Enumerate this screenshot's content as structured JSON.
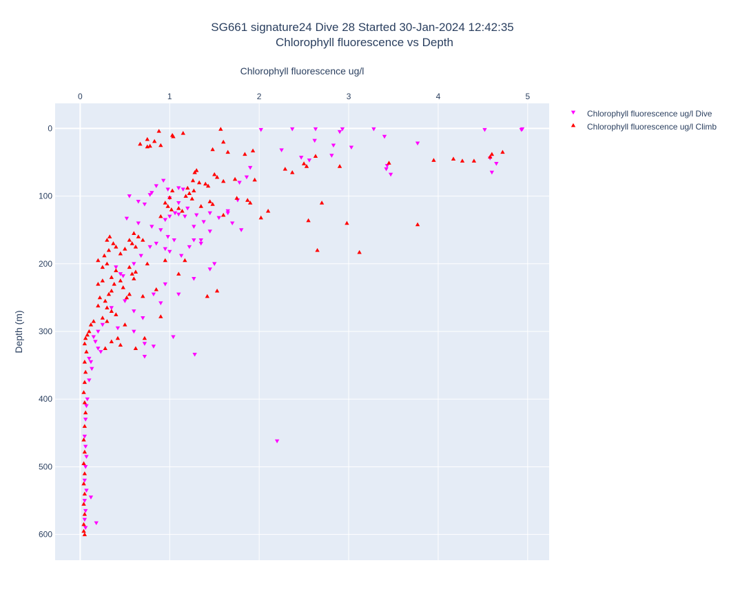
{
  "chart_data": {
    "type": "scatter",
    "title_line1": "SG661 signature24 Dive 28 Started 30-Jan-2024 12:42:35",
    "title_line2": "Chlorophyll fluorescence vs Depth",
    "xlabel": "Chlorophyll fluorescence ug/l",
    "ylabel": "Depth (m)",
    "xlim": [
      -0.28,
      5.24
    ],
    "ylim": [
      638,
      -37
    ],
    "x_ticks": [
      "0",
      "1",
      "2",
      "3",
      "4",
      "5"
    ],
    "y_ticks": [
      "0",
      "100",
      "200",
      "300",
      "400",
      "500",
      "600"
    ],
    "x_axis_side": "top",
    "y_reversed": true,
    "grid": true,
    "legend_position": "top-right",
    "series": [
      {
        "name": "Chlorophyll fluorescence ug/l Dive",
        "color": "#ff00ff",
        "marker": "triangle-down",
        "points": [
          [
            2.02,
            2
          ],
          [
            2.37,
            1
          ],
          [
            2.63,
            1
          ],
          [
            2.9,
            5
          ],
          [
            2.93,
            1
          ],
          [
            3.28,
            1
          ],
          [
            4.52,
            2
          ],
          [
            4.93,
            2
          ],
          [
            4.94,
            1
          ],
          [
            3.4,
            12
          ],
          [
            2.62,
            18
          ],
          [
            2.83,
            25
          ],
          [
            3.03,
            28
          ],
          [
            3.77,
            22
          ],
          [
            2.25,
            32
          ],
          [
            2.47,
            43
          ],
          [
            2.56,
            47
          ],
          [
            2.81,
            40
          ],
          [
            4.58,
            44
          ],
          [
            4.65,
            52
          ],
          [
            3.43,
            55
          ],
          [
            3.42,
            60
          ],
          [
            3.47,
            68
          ],
          [
            4.6,
            65
          ],
          [
            1.9,
            58
          ],
          [
            1.86,
            72
          ],
          [
            1.78,
            80
          ],
          [
            1.76,
            106
          ],
          [
            1.65,
            122
          ],
          [
            1.45,
            125
          ],
          [
            1.15,
            90
          ],
          [
            1.1,
            88
          ],
          [
            0.98,
            90
          ],
          [
            0.93,
            77
          ],
          [
            0.85,
            85
          ],
          [
            0.55,
            100
          ],
          [
            0.65,
            108
          ],
          [
            0.72,
            112
          ],
          [
            0.78,
            98
          ],
          [
            0.8,
            95
          ],
          [
            1.0,
            103
          ],
          [
            1.1,
            110
          ],
          [
            1.2,
            118
          ],
          [
            1.3,
            128
          ],
          [
            1.38,
            138
          ],
          [
            1.45,
            152
          ],
          [
            1.55,
            132
          ],
          [
            1.65,
            125
          ],
          [
            1.7,
            140
          ],
          [
            1.8,
            150
          ],
          [
            0.52,
            133
          ],
          [
            0.65,
            140
          ],
          [
            0.8,
            145
          ],
          [
            0.95,
            135
          ],
          [
            1.0,
            130
          ],
          [
            1.06,
            125
          ],
          [
            1.1,
            127
          ],
          [
            1.17,
            130
          ],
          [
            1.27,
            145
          ],
          [
            1.35,
            165
          ],
          [
            0.9,
            150
          ],
          [
            0.98,
            160
          ],
          [
            1.05,
            165
          ],
          [
            0.85,
            170
          ],
          [
            0.95,
            178
          ],
          [
            1.0,
            182
          ],
          [
            1.13,
            188
          ],
          [
            1.22,
            175
          ],
          [
            1.27,
            165
          ],
          [
            1.35,
            170
          ],
          [
            0.4,
            205
          ],
          [
            0.45,
            215
          ],
          [
            0.48,
            218
          ],
          [
            0.6,
            200
          ],
          [
            0.68,
            188
          ],
          [
            0.78,
            175
          ],
          [
            1.27,
            222
          ],
          [
            1.45,
            208
          ],
          [
            1.5,
            200
          ],
          [
            1.1,
            245
          ],
          [
            0.95,
            230
          ],
          [
            0.82,
            245
          ],
          [
            0.9,
            258
          ],
          [
            0.7,
            280
          ],
          [
            0.6,
            270
          ],
          [
            0.5,
            255
          ],
          [
            0.35,
            265
          ],
          [
            0.25,
            290
          ],
          [
            0.2,
            300
          ],
          [
            0.15,
            308
          ],
          [
            0.17,
            315
          ],
          [
            0.2,
            325
          ],
          [
            0.23,
            330
          ],
          [
            0.42,
            295
          ],
          [
            0.6,
            300
          ],
          [
            0.72,
            318
          ],
          [
            0.82,
            322
          ],
          [
            1.04,
            308
          ],
          [
            1.28,
            334
          ],
          [
            0.72,
            337
          ],
          [
            2.2,
            462
          ],
          [
            0.18,
            583
          ],
          [
            0.12,
            545
          ],
          [
            0.1,
            340
          ],
          [
            0.12,
            345
          ],
          [
            0.13,
            355
          ],
          [
            0.1,
            372
          ],
          [
            0.08,
            400
          ],
          [
            0.07,
            410
          ],
          [
            0.06,
            430
          ],
          [
            0.05,
            455
          ],
          [
            0.06,
            470
          ],
          [
            0.07,
            485
          ],
          [
            0.06,
            500
          ],
          [
            0.05,
            520
          ],
          [
            0.07,
            535
          ],
          [
            0.05,
            550
          ],
          [
            0.06,
            565
          ],
          [
            0.05,
            578
          ],
          [
            0.06,
            590
          ]
        ]
      },
      {
        "name": "Chlorophyll fluorescence ug/l Climb",
        "color": "#ff0000",
        "marker": "triangle-up",
        "points": [
          [
            1.57,
            1
          ],
          [
            0.88,
            4
          ],
          [
            1.15,
            7
          ],
          [
            1.03,
            10
          ],
          [
            1.04,
            12
          ],
          [
            0.75,
            16
          ],
          [
            0.83,
            19
          ],
          [
            0.67,
            23
          ],
          [
            0.75,
            27
          ],
          [
            0.78,
            26
          ],
          [
            0.9,
            25
          ],
          [
            1.6,
            20
          ],
          [
            1.65,
            35
          ],
          [
            1.48,
            31
          ],
          [
            1.93,
            33
          ],
          [
            1.84,
            38
          ],
          [
            2.63,
            41
          ],
          [
            2.9,
            56
          ],
          [
            2.29,
            60
          ],
          [
            2.37,
            65
          ],
          [
            2.5,
            52
          ],
          [
            2.53,
            56
          ],
          [
            3.95,
            47
          ],
          [
            4.17,
            45
          ],
          [
            4.27,
            48
          ],
          [
            4.4,
            48
          ],
          [
            4.58,
            42
          ],
          [
            4.6,
            38
          ],
          [
            4.72,
            35
          ],
          [
            3.45,
            51
          ],
          [
            1.3,
            62
          ],
          [
            1.28,
            65
          ],
          [
            1.5,
            68
          ],
          [
            1.53,
            72
          ],
          [
            1.6,
            78
          ],
          [
            1.73,
            75
          ],
          [
            1.95,
            76
          ],
          [
            1.4,
            82
          ],
          [
            1.43,
            85
          ],
          [
            1.33,
            80
          ],
          [
            1.26,
            77
          ],
          [
            1.2,
            88
          ],
          [
            1.27,
            92
          ],
          [
            1.22,
            96
          ],
          [
            1.25,
            104
          ],
          [
            1.45,
            108
          ],
          [
            1.6,
            128
          ],
          [
            1.75,
            103
          ],
          [
            1.87,
            106
          ],
          [
            1.9,
            110
          ],
          [
            1.18,
            100
          ],
          [
            1.03,
            92
          ],
          [
            1.0,
            102
          ],
          [
            0.95,
            110
          ],
          [
            0.98,
            115
          ],
          [
            1.02,
            120
          ],
          [
            0.9,
            130
          ],
          [
            1.1,
            118
          ],
          [
            1.14,
            122
          ],
          [
            1.35,
            115
          ],
          [
            1.48,
            112
          ],
          [
            2.02,
            132
          ],
          [
            2.1,
            122
          ],
          [
            2.55,
            136
          ],
          [
            2.7,
            110
          ],
          [
            2.98,
            140
          ],
          [
            3.77,
            142
          ],
          [
            2.65,
            180
          ],
          [
            3.12,
            183
          ],
          [
            0.55,
            165
          ],
          [
            0.58,
            170
          ],
          [
            0.62,
            175
          ],
          [
            0.7,
            165
          ],
          [
            0.65,
            160
          ],
          [
            0.6,
            155
          ],
          [
            0.4,
            175
          ],
          [
            0.37,
            170
          ],
          [
            0.33,
            160
          ],
          [
            0.3,
            165
          ],
          [
            0.32,
            180
          ],
          [
            0.45,
            185
          ],
          [
            0.5,
            178
          ],
          [
            0.27,
            188
          ],
          [
            0.2,
            195
          ],
          [
            0.25,
            205
          ],
          [
            0.3,
            200
          ],
          [
            0.4,
            210
          ],
          [
            0.35,
            220
          ],
          [
            0.25,
            225
          ],
          [
            0.2,
            230
          ],
          [
            0.38,
            230
          ],
          [
            0.45,
            225
          ],
          [
            0.48,
            235
          ],
          [
            0.55,
            245
          ],
          [
            0.52,
            250
          ],
          [
            0.35,
            240
          ],
          [
            0.32,
            245
          ],
          [
            0.28,
            255
          ],
          [
            0.22,
            250
          ],
          [
            0.2,
            262
          ],
          [
            0.3,
            265
          ],
          [
            0.35,
            270
          ],
          [
            0.4,
            275
          ],
          [
            0.3,
            285
          ],
          [
            0.25,
            280
          ],
          [
            0.15,
            285
          ],
          [
            0.12,
            290
          ],
          [
            0.1,
            300
          ],
          [
            0.08,
            305
          ],
          [
            0.06,
            310
          ],
          [
            0.05,
            318
          ],
          [
            0.07,
            330
          ],
          [
            0.05,
            345
          ],
          [
            0.06,
            360
          ],
          [
            0.05,
            375
          ],
          [
            0.04,
            390
          ],
          [
            0.05,
            405
          ],
          [
            0.06,
            420
          ],
          [
            0.05,
            440
          ],
          [
            0.04,
            460
          ],
          [
            0.05,
            478
          ],
          [
            0.04,
            495
          ],
          [
            0.05,
            510
          ],
          [
            0.04,
            525
          ],
          [
            0.05,
            540
          ],
          [
            0.04,
            555
          ],
          [
            0.05,
            570
          ],
          [
            0.04,
            585
          ],
          [
            0.04,
            595
          ],
          [
            0.05,
            600
          ],
          [
            0.9,
            278
          ],
          [
            0.7,
            248
          ],
          [
            0.6,
            222
          ],
          [
            0.58,
            215
          ],
          [
            0.62,
            212
          ],
          [
            0.55,
            205
          ],
          [
            0.75,
            200
          ],
          [
            0.95,
            195
          ],
          [
            1.17,
            195
          ],
          [
            0.85,
            238
          ],
          [
            1.42,
            248
          ],
          [
            1.53,
            240
          ],
          [
            1.1,
            215
          ],
          [
            0.5,
            290
          ],
          [
            0.42,
            310
          ],
          [
            0.35,
            315
          ],
          [
            0.62,
            325
          ],
          [
            0.72,
            310
          ],
          [
            0.45,
            320
          ],
          [
            0.28,
            325
          ]
        ]
      }
    ]
  }
}
